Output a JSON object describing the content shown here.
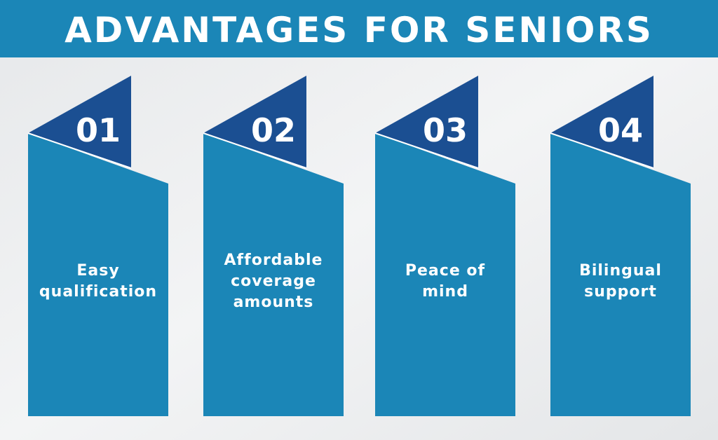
{
  "header": {
    "title": "ADVANTAGES FOR SENIORS"
  },
  "items": [
    {
      "number": "01",
      "lines": [
        "Easy",
        "qualification"
      ]
    },
    {
      "number": "02",
      "lines": [
        "Affordable",
        "coverage",
        "amounts"
      ]
    },
    {
      "number": "03",
      "lines": [
        "Peace of",
        "mind"
      ]
    },
    {
      "number": "04",
      "lines": [
        "Bilingual",
        "support"
      ]
    }
  ]
}
